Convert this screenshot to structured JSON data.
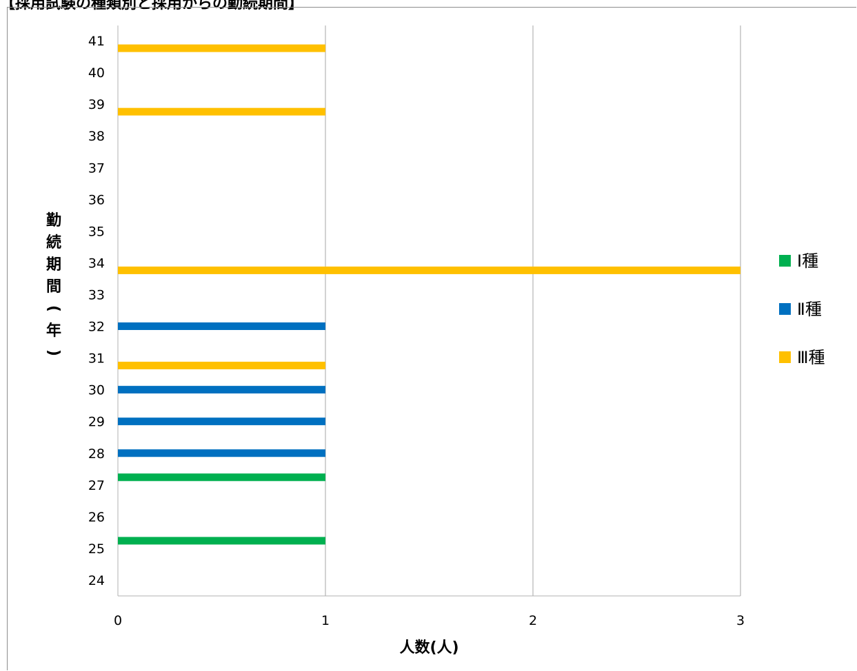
{
  "header": {
    "title": "【採用試験の種類別と採用からの勤続期間】"
  },
  "chart_data": {
    "type": "bar",
    "orientation": "horizontal",
    "xlabel": "人数(人)",
    "ylabel": "勤続期間(年)",
    "xlim": [
      0,
      3
    ],
    "x_ticks": [
      "0",
      "1",
      "2",
      "3"
    ],
    "y_categories": [
      "24",
      "25",
      "26",
      "27",
      "28",
      "29",
      "30",
      "31",
      "32",
      "33",
      "34",
      "35",
      "36",
      "37",
      "38",
      "39",
      "40",
      "41"
    ],
    "grid": "vertical",
    "legend_position": "right",
    "series": [
      {
        "name": "Ⅰ種",
        "color": "#00b050",
        "values": [
          0,
          1,
          0,
          1,
          0,
          0,
          0,
          0,
          0,
          0,
          0,
          0,
          0,
          0,
          0,
          0,
          0,
          0
        ]
      },
      {
        "name": "Ⅱ種",
        "color": "#0070c0",
        "values": [
          0,
          0,
          0,
          0,
          1,
          1,
          1,
          0,
          1,
          0,
          0,
          0,
          0,
          0,
          0,
          0,
          0,
          0
        ]
      },
      {
        "name": "Ⅲ種",
        "color": "#ffc000",
        "values": [
          0,
          0,
          0,
          0,
          0,
          0,
          0,
          1,
          0,
          0,
          3,
          0,
          0,
          0,
          0,
          1,
          0,
          1
        ]
      }
    ]
  }
}
